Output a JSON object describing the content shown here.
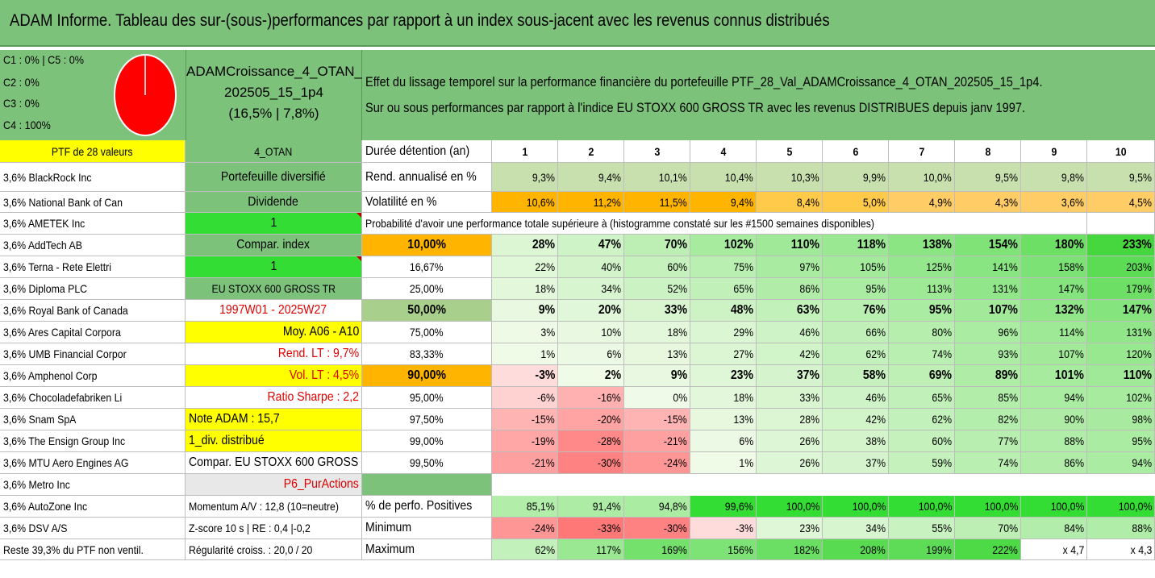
{
  "title": "ADAM Informe. Tableau des sur-(sous-)performances par rapport à un index sous-jacent avec les revenus connus distribués",
  "allocation": {
    "lines": [
      "C1 : 0% | C5 : 0%",
      "C2 : 0%",
      "C3 : 0%",
      "C4 : 100%"
    ],
    "pie": [
      {
        "label": "C4",
        "value": 100,
        "color": "#ff0000"
      }
    ]
  },
  "portfolio": {
    "name_line1": "ADAMCroissance_4_OTAN_",
    "name_line2": "202505_15_1p4",
    "name_line3": "(16,5% | 7,8%)"
  },
  "description": {
    "line1": "Effet du lissage temporel sur la performance financière du portefeuille PTF_28_Val_ADAMCroissance_4_OTAN_202505_15_1p4.",
    "line2": "Sur ou sous performances par rapport à l'indice EU STOXX 600 GROSS TR avec les revenus DISTRIBUES depuis janv 1997."
  },
  "holdings_header": "PTF de 28 valeurs",
  "holdings": [
    "3,6% BlackRock Inc",
    "3,6% National Bank of Can",
    "3,6% AMETEK Inc",
    "3,6% AddTech AB",
    "3,6% Terna - Rete Elettri",
    "3,6% Diploma PLC",
    "3,6% Royal Bank of Canada",
    "3,6% Ares Capital Corpora",
    "3,6% UMB Financial Corpor",
    "3,6% Amphenol Corp",
    "3,6% Chocoladefabriken Li",
    "3,6% Snam SpA",
    "3,6% The Ensign Group Inc",
    "3,6% MTU Aero Engines AG",
    "3,6% Metro Inc",
    "3,6% AutoZone Inc",
    "3,6% DSV A/S",
    "Reste 39,3% du PTF non ventil."
  ],
  "info": [
    "4_OTAN",
    "Portefeuille diversifié",
    "Dividende",
    "1",
    "Compar. index",
    "1",
    "EU STOXX 600 GROSS TR",
    "1997W01 - 2025W27",
    "Moy. A06 - A10",
    "Rend. LT : 9,7%",
    "Vol. LT : 4,5%",
    "Ratio Sharpe : 2,2",
    "Note ADAM : 15,7",
    "1_div. distribué",
    "Compar. EU STOXX 600 GROSS TR",
    "P6_PurActions",
    "Momentum A/V : 12,8 (10=neutre)",
    "Z-score 10 s | RE : 0,4 |-0,2",
    "Régularité croiss. : 20,0 / 20"
  ],
  "table": {
    "duration_label": "Durée détention (an)",
    "years": [
      "1",
      "2",
      "3",
      "4",
      "5",
      "6",
      "7",
      "8",
      "9",
      "10"
    ],
    "rend_label": "Rend. annualisé en %",
    "rend": [
      "9,3%",
      "9,4%",
      "10,1%",
      "10,4%",
      "10,3%",
      "9,9%",
      "10,0%",
      "9,5%",
      "9,8%",
      "9,5%"
    ],
    "vol_label": "Volatilité en %",
    "vol": [
      "10,6%",
      "11,2%",
      "11,5%",
      "9,4%",
      "8,4%",
      "5,0%",
      "4,9%",
      "4,3%",
      "3,6%",
      "4,5%"
    ],
    "prob_title": "Probabilité d'avoir une performance totale supérieure à (histogramme constaté sur les #1500 semaines disponibles)",
    "prob_rows": [
      {
        "p": "10,00%",
        "v": [
          "28%",
          "47%",
          "70%",
          "102%",
          "110%",
          "118%",
          "138%",
          "154%",
          "180%",
          "233%"
        ]
      },
      {
        "p": "16,67%",
        "v": [
          "22%",
          "40%",
          "60%",
          "75%",
          "97%",
          "105%",
          "125%",
          "141%",
          "158%",
          "203%"
        ]
      },
      {
        "p": "25,00%",
        "v": [
          "18%",
          "34%",
          "52%",
          "65%",
          "86%",
          "95%",
          "113%",
          "131%",
          "147%",
          "179%"
        ]
      },
      {
        "p": "50,00%",
        "v": [
          "9%",
          "20%",
          "33%",
          "48%",
          "63%",
          "76%",
          "95%",
          "107%",
          "132%",
          "147%"
        ]
      },
      {
        "p": "75,00%",
        "v": [
          "3%",
          "10%",
          "18%",
          "29%",
          "46%",
          "66%",
          "80%",
          "96%",
          "114%",
          "131%"
        ]
      },
      {
        "p": "83,33%",
        "v": [
          "1%",
          "6%",
          "13%",
          "27%",
          "42%",
          "62%",
          "74%",
          "93%",
          "107%",
          "120%"
        ]
      },
      {
        "p": "90,00%",
        "v": [
          "-3%",
          "2%",
          "9%",
          "23%",
          "37%",
          "58%",
          "69%",
          "89%",
          "101%",
          "110%"
        ]
      },
      {
        "p": "95,00%",
        "v": [
          "-6%",
          "-16%",
          "0%",
          "18%",
          "33%",
          "46%",
          "65%",
          "85%",
          "94%",
          "102%"
        ]
      },
      {
        "p": "97,50%",
        "v": [
          "-15%",
          "-20%",
          "-15%",
          "13%",
          "28%",
          "42%",
          "62%",
          "82%",
          "90%",
          "98%"
        ]
      },
      {
        "p": "99,00%",
        "v": [
          "-19%",
          "-28%",
          "-21%",
          "6%",
          "26%",
          "38%",
          "60%",
          "77%",
          "88%",
          "95%"
        ]
      },
      {
        "p": "99,50%",
        "v": [
          "-21%",
          "-30%",
          "-24%",
          "1%",
          "26%",
          "37%",
          "59%",
          "74%",
          "86%",
          "94%"
        ]
      }
    ],
    "pos_label": "% de perfo. Positives",
    "pos": [
      "85,1%",
      "91,4%",
      "94,8%",
      "99,6%",
      "100,0%",
      "100,0%",
      "100,0%",
      "100,0%",
      "100,0%",
      "100,0%"
    ],
    "min_label": "Minimum",
    "min": [
      "-24%",
      "-33%",
      "-30%",
      "-3%",
      "23%",
      "34%",
      "55%",
      "70%",
      "84%",
      "88%"
    ],
    "max_label": "Maximum",
    "max": [
      "62%",
      "117%",
      "169%",
      "156%",
      "182%",
      "208%",
      "199%",
      "222%",
      "x 4,7",
      "x 4,3"
    ]
  }
}
